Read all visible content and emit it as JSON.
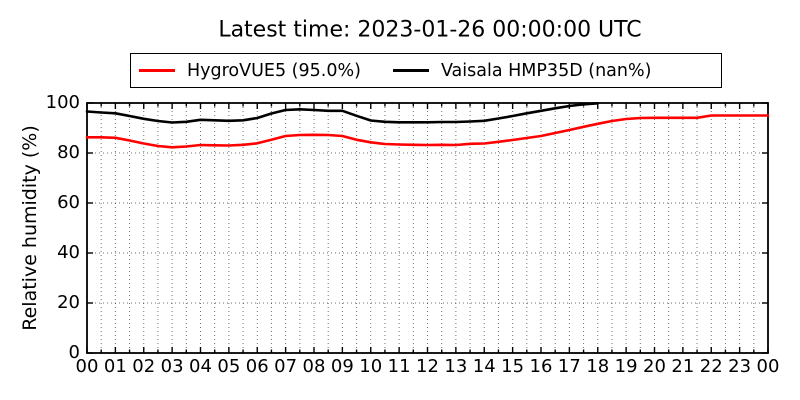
{
  "chart_data": {
    "type": "line",
    "title": "Latest time: 2023-01-26 00:00:00 UTC",
    "xlabel": "",
    "ylabel": "Relative humidity (%)",
    "xlim": [
      0,
      24
    ],
    "ylim": [
      0,
      100
    ],
    "x_tick_hours": [
      0,
      1,
      2,
      3,
      4,
      5,
      6,
      7,
      8,
      9,
      10,
      11,
      12,
      13,
      14,
      15,
      16,
      17,
      18,
      19,
      20,
      21,
      22,
      23,
      24
    ],
    "x_tick_labels": [
      "00",
      "01",
      "02",
      "03",
      "04",
      "05",
      "06",
      "07",
      "08",
      "09",
      "10",
      "11",
      "12",
      "13",
      "14",
      "15",
      "16",
      "17",
      "18",
      "19",
      "20",
      "21",
      "22",
      "23",
      "00"
    ],
    "y_ticks": [
      0,
      20,
      40,
      60,
      80,
      100
    ],
    "grid": {
      "style": "dotted",
      "x_interval_hours": 0.5,
      "y_interval": 20,
      "color": "#000000"
    },
    "legend_position": "top-center-outside",
    "series": [
      {
        "name": "HygroVUE5 (95.0%)",
        "color": "#ff0000",
        "latest_value_pct": 95.0,
        "x": [
          0,
          0.5,
          1,
          1.5,
          2,
          2.5,
          3,
          3.5,
          4,
          4.5,
          5,
          5.5,
          6,
          6.5,
          7,
          7.5,
          8,
          8.5,
          9,
          9.5,
          10,
          10.5,
          11,
          11.5,
          12,
          12.5,
          13,
          13.5,
          14,
          14.5,
          15,
          15.5,
          16,
          16.5,
          17,
          17.5,
          18,
          18.5,
          19,
          19.5,
          20,
          20.5,
          21,
          21.5,
          22,
          22.5,
          23,
          23.5,
          24
        ],
        "values": [
          86.3,
          86.3,
          86.1,
          85.0,
          83.8,
          82.8,
          82.3,
          82.6,
          83.2,
          83.1,
          83.0,
          83.3,
          83.9,
          85.3,
          86.8,
          87.2,
          87.3,
          87.2,
          86.8,
          85.3,
          84.3,
          83.6,
          83.4,
          83.3,
          83.2,
          83.3,
          83.2,
          83.7,
          83.8,
          84.5,
          85.2,
          86.0,
          86.8,
          88.0,
          89.2,
          90.5,
          91.7,
          92.8,
          93.6,
          94.0,
          94.1,
          94.1,
          94.1,
          94.1,
          95.0,
          95.0,
          95.0,
          95.0,
          95.0
        ]
      },
      {
        "name": "Vaisala HMP35D (nan%)",
        "color": "#000000",
        "latest_value_pct": "nan",
        "x": [
          0,
          0.5,
          1,
          1.5,
          2,
          2.5,
          3,
          3.5,
          4,
          4.5,
          5,
          5.5,
          6,
          6.5,
          7,
          7.5,
          8,
          8.5,
          9,
          9.5,
          10,
          10.5,
          11,
          11.5,
          12,
          12.5,
          13,
          13.5,
          14,
          14.5,
          15,
          15.5,
          16,
          16.5,
          17,
          17.5,
          18
        ],
        "values": [
          96.6,
          96.2,
          95.9,
          94.8,
          93.7,
          92.8,
          92.2,
          92.5,
          93.3,
          93.1,
          92.9,
          93.1,
          94.0,
          95.8,
          97.2,
          97.5,
          97.2,
          96.9,
          96.9,
          94.9,
          93.0,
          92.5,
          92.3,
          92.3,
          92.3,
          92.4,
          92.4,
          92.6,
          92.9,
          93.8,
          94.8,
          95.9,
          96.9,
          97.9,
          98.8,
          99.5,
          99.9
        ]
      }
    ]
  }
}
